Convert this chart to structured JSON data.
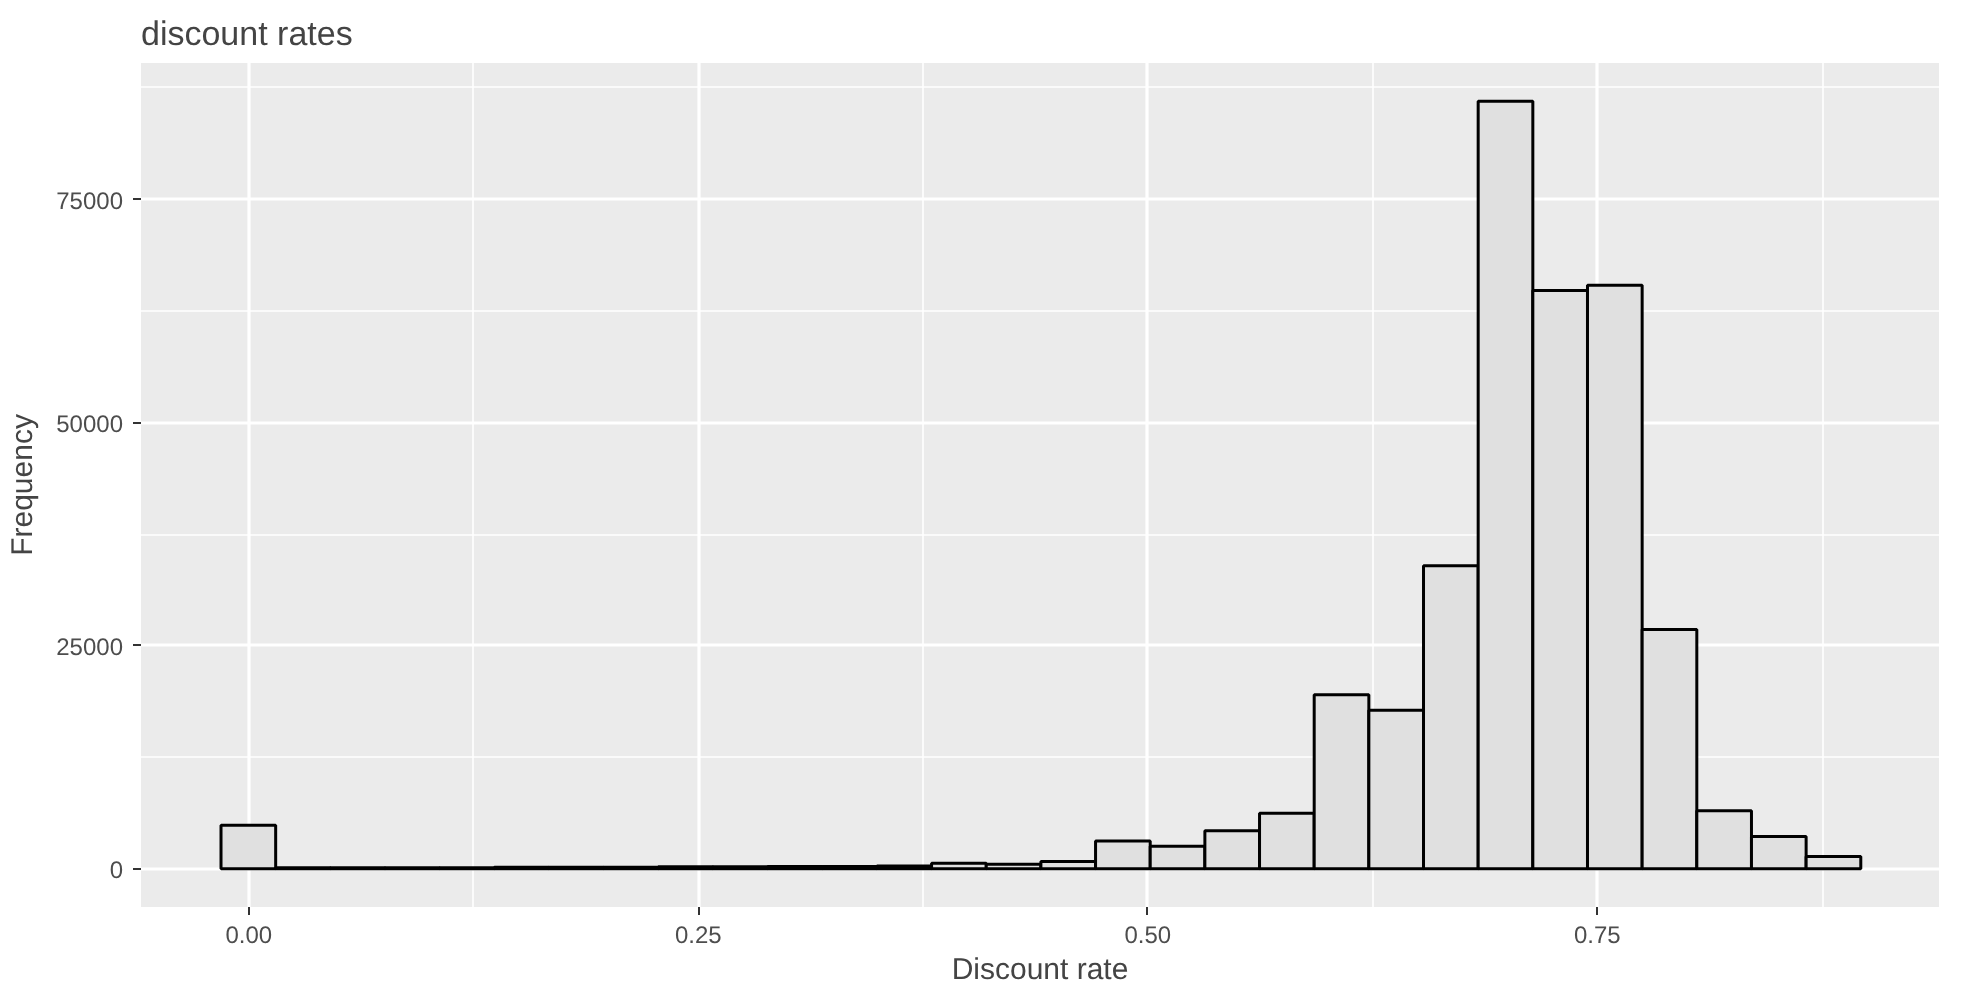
{
  "chart_data": {
    "type": "histogram",
    "title": "discount rates",
    "xlabel": "Discount rate",
    "ylabel": "Frequency",
    "bins": [
      -0.0155,
      0.0149,
      0.0453,
      0.0757,
      0.1061,
      0.1365,
      0.1669,
      0.1973,
      0.2277,
      0.2581,
      0.2885,
      0.3189,
      0.3493,
      0.3797,
      0.4101,
      0.4405,
      0.4709,
      0.5013,
      0.5317,
      0.5621,
      0.5925,
      0.6229,
      0.6533,
      0.6837,
      0.7141,
      0.7445,
      0.7749,
      0.8053,
      0.8357,
      0.8661,
      0.8965
    ],
    "values": [
      4850,
      100,
      100,
      100,
      100,
      150,
      150,
      150,
      200,
      200,
      250,
      250,
      300,
      600,
      500,
      800,
      3100,
      2500,
      4250,
      6200,
      19500,
      17750,
      33950,
      86000,
      64800,
      65400,
      26800,
      6500,
      3600,
      1350
    ],
    "color": "#e0e0e0",
    "xlim": [
      -0.06,
      0.94
    ],
    "ylim": [
      -4300,
      90300
    ],
    "xticks": [
      {
        "value": 0,
        "label": "0.00"
      },
      {
        "value": 0.25,
        "label": "0.25"
      },
      {
        "value": 0.5,
        "label": "0.50"
      },
      {
        "value": 0.75,
        "label": "0.75"
      }
    ],
    "yticks": [
      0,
      25000,
      50000,
      75000
    ],
    "grid": true
  }
}
